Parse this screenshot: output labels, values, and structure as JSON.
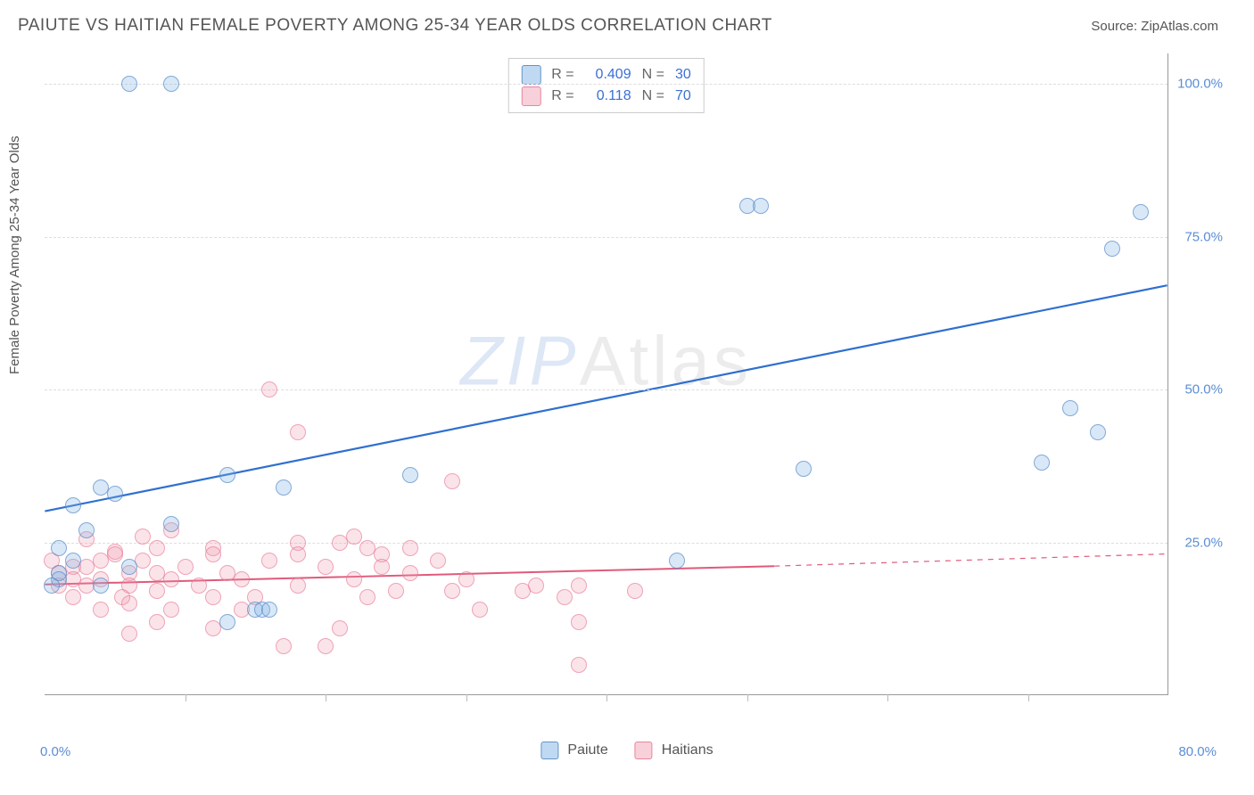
{
  "header": {
    "title": "PAIUTE VS HAITIAN FEMALE POVERTY AMONG 25-34 YEAR OLDS CORRELATION CHART",
    "source_prefix": "Source: ",
    "source_name": "ZipAtlas.com"
  },
  "watermark": {
    "zip": "ZIP",
    "atlas": "Atlas"
  },
  "chart": {
    "type": "scatter",
    "xlim": [
      0,
      80
    ],
    "ylim": [
      0,
      105
    ],
    "y_ticks": [
      25,
      50,
      75,
      100
    ],
    "y_tick_labels": [
      "25.0%",
      "50.0%",
      "75.0%",
      "100.0%"
    ],
    "x_start_label": "0.0%",
    "x_end_label": "80.0%",
    "x_tick_step": 10,
    "background_color": "#ffffff",
    "grid_color": "#dddddd",
    "axis_color": "#999999",
    "y_axis_label": "Female Poverty Among 25-34 Year Olds",
    "marker_radius": 9,
    "series": {
      "blue": {
        "label": "Paiute",
        "r": "0.409",
        "n": "30",
        "fill": "rgba(130,180,230,0.35)",
        "stroke": "rgba(90,140,200,0.85)",
        "trend_color": "#2f6fd0",
        "trend_width": 2.2,
        "trend": {
          "x1": 0,
          "y1": 30,
          "x2": 80,
          "y2": 67
        },
        "points": [
          [
            6,
            100
          ],
          [
            9,
            100
          ],
          [
            50,
            80
          ],
          [
            51,
            80
          ],
          [
            78,
            79
          ],
          [
            76,
            73
          ],
          [
            73,
            47
          ],
          [
            75,
            43
          ],
          [
            71,
            38
          ],
          [
            54,
            37
          ],
          [
            26,
            36
          ],
          [
            13,
            36
          ],
          [
            4,
            34
          ],
          [
            17,
            34
          ],
          [
            5,
            33
          ],
          [
            2,
            31
          ],
          [
            9,
            28
          ],
          [
            3,
            27
          ],
          [
            1,
            24
          ],
          [
            2,
            22
          ],
          [
            45,
            22
          ],
          [
            6,
            21
          ],
          [
            1,
            20
          ],
          [
            1,
            19
          ],
          [
            0.5,
            18
          ],
          [
            4,
            18
          ],
          [
            15,
            14
          ],
          [
            15.5,
            14
          ],
          [
            16,
            14
          ],
          [
            13,
            12
          ]
        ]
      },
      "pink": {
        "label": "Haitians",
        "r": "0.118",
        "n": "70",
        "fill": "rgba(240,150,170,0.30)",
        "stroke": "rgba(230,120,150,0.75)",
        "trend_color": "#e05a7a",
        "trend_width": 2,
        "trend_solid": {
          "x1": 0,
          "y1": 18,
          "x2": 52,
          "y2": 21
        },
        "trend_dash": {
          "x1": 52,
          "y1": 21,
          "x2": 80,
          "y2": 23
        },
        "points": [
          [
            16,
            50
          ],
          [
            18,
            43
          ],
          [
            29,
            35
          ],
          [
            9,
            27
          ],
          [
            22,
            26
          ],
          [
            7,
            26
          ],
          [
            3,
            25.5
          ],
          [
            21,
            25
          ],
          [
            12,
            24
          ],
          [
            18,
            25
          ],
          [
            23,
            24
          ],
          [
            8,
            24
          ],
          [
            26,
            24
          ],
          [
            5,
            23.5
          ],
          [
            18,
            23
          ],
          [
            5,
            23
          ],
          [
            24,
            23
          ],
          [
            12,
            23
          ],
          [
            7,
            22
          ],
          [
            28,
            22
          ],
          [
            16,
            22
          ],
          [
            4,
            22
          ],
          [
            0.5,
            22
          ],
          [
            2,
            21
          ],
          [
            10,
            21
          ],
          [
            24,
            21
          ],
          [
            20,
            21
          ],
          [
            3,
            21
          ],
          [
            1,
            20
          ],
          [
            8,
            20
          ],
          [
            13,
            20
          ],
          [
            26,
            20
          ],
          [
            6,
            20
          ],
          [
            2,
            19
          ],
          [
            9,
            19
          ],
          [
            22,
            19
          ],
          [
            30,
            19
          ],
          [
            4,
            19
          ],
          [
            14,
            19
          ],
          [
            1,
            18
          ],
          [
            6,
            18
          ],
          [
            11,
            18
          ],
          [
            25,
            17
          ],
          [
            3,
            18
          ],
          [
            8,
            17
          ],
          [
            18,
            18
          ],
          [
            35,
            18
          ],
          [
            38,
            18
          ],
          [
            42,
            17
          ],
          [
            34,
            17
          ],
          [
            29,
            17
          ],
          [
            5.5,
            16
          ],
          [
            12,
            16
          ],
          [
            15,
            16
          ],
          [
            23,
            16
          ],
          [
            37,
            16
          ],
          [
            2,
            16
          ],
          [
            6,
            15
          ],
          [
            9,
            14
          ],
          [
            14,
            14
          ],
          [
            4,
            14
          ],
          [
            38,
            12
          ],
          [
            8,
            12
          ],
          [
            21,
            11
          ],
          [
            12,
            11
          ],
          [
            31,
            14
          ],
          [
            17,
            8
          ],
          [
            20,
            8
          ],
          [
            6,
            10
          ],
          [
            38,
            5
          ]
        ]
      }
    }
  },
  "legend_top": {
    "r_label": "R =",
    "n_label": "N ="
  },
  "legend_bottom": {
    "a": "Paiute",
    "b": "Haitians"
  }
}
